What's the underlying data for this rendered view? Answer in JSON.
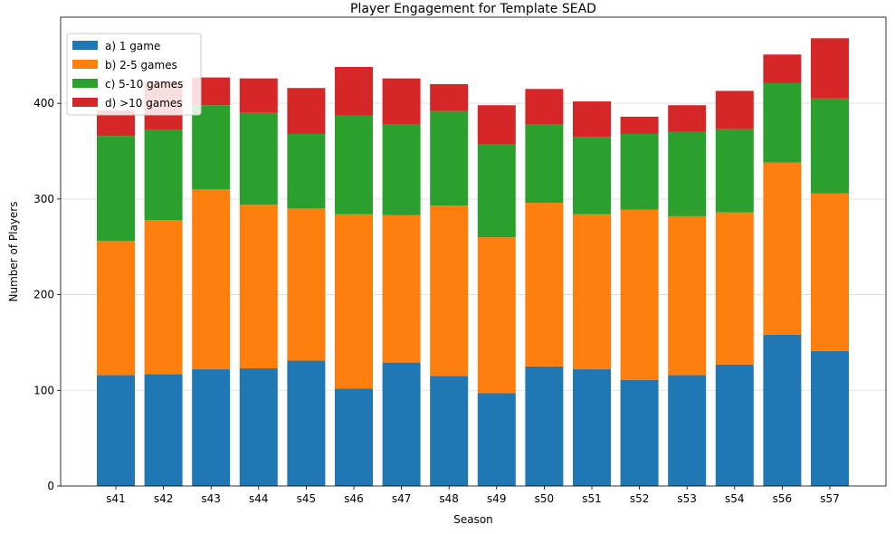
{
  "chart_data": {
    "type": "bar",
    "stacked": true,
    "title": "Player Engagement for Template SEAD",
    "xlabel": "Season",
    "ylabel": "Number of Players",
    "categories": [
      "s41",
      "s42",
      "s43",
      "s44",
      "s45",
      "s46",
      "s47",
      "s48",
      "s49",
      "s50",
      "s51",
      "s52",
      "s53",
      "s54",
      "s56",
      "s57"
    ],
    "ylim": [
      0,
      490
    ],
    "yticks": [
      0,
      100,
      200,
      300,
      400
    ],
    "grid": "horizontal",
    "legend_position": "top-left",
    "series": [
      {
        "name": "a) 1 game",
        "color": "#1f77b4",
        "values": [
          116,
          117,
          122,
          123,
          131,
          102,
          129,
          115,
          97,
          125,
          122,
          111,
          116,
          127,
          158,
          141
        ]
      },
      {
        "name": "b) 2-5 games",
        "color": "#ff7f0e",
        "values": [
          140,
          161,
          188,
          171,
          159,
          182,
          154,
          178,
          163,
          171,
          162,
          178,
          166,
          159,
          180,
          165
        ]
      },
      {
        "name": "c) 5-10 games",
        "color": "#2ca02c",
        "values": [
          110,
          94,
          88,
          96,
          78,
          103,
          95,
          99,
          97,
          82,
          81,
          79,
          88,
          87,
          83,
          99
        ]
      },
      {
        "name": "d) >10 games",
        "color": "#d62728",
        "values": [
          27,
          51,
          29,
          36,
          48,
          51,
          48,
          28,
          41,
          37,
          37,
          18,
          28,
          40,
          30,
          63
        ]
      }
    ]
  }
}
